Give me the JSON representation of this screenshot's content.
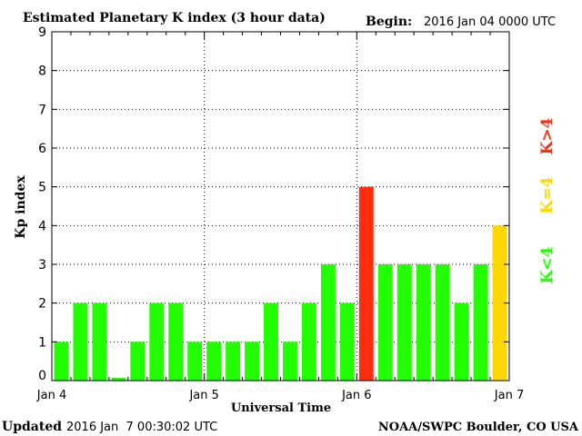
{
  "header": {
    "title": "Estimated Planetary K index (3 hour data)",
    "begin_label": "Begin:",
    "begin_value": "2016 Jan 04 0000 UTC"
  },
  "footer": {
    "updated_label": "Updated",
    "updated_value": "2016 Jan  7 00:30:02 UTC",
    "credit": "NOAA/SWPC Boulder, CO USA"
  },
  "legend": {
    "high": "K>4",
    "equal": "K=4",
    "low": "K<4"
  },
  "colors": {
    "low": "#22ff00",
    "equal": "#ffd700",
    "high": "#ff2e12",
    "axis": "#000000",
    "grid": "#000000"
  },
  "chart_data": {
    "type": "bar",
    "title": "Estimated Planetary K index (3 hour data)",
    "xlabel": "Universal Time",
    "ylabel": "Kp index",
    "ylim": [
      0,
      9
    ],
    "yticks": [
      0,
      1,
      2,
      3,
      4,
      5,
      6,
      7,
      8,
      9
    ],
    "xticks": [
      "Jan 4",
      "Jan 5",
      "Jan 6",
      "Jan 7"
    ],
    "bins_per_day": 8,
    "grid": true,
    "legend_position": "right",
    "values": [
      1,
      2,
      2,
      0,
      1,
      2,
      2,
      1,
      1,
      1,
      1,
      2,
      1,
      2,
      3,
      2,
      5,
      3,
      3,
      3,
      3,
      2,
      3,
      4
    ]
  }
}
